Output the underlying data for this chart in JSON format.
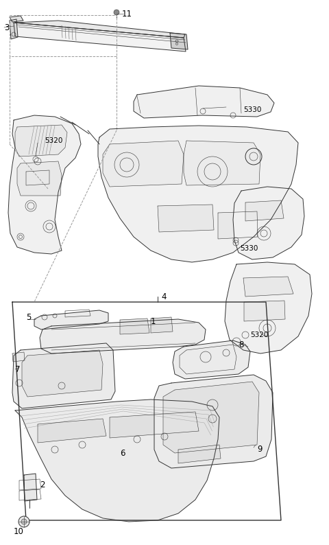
{
  "bg_color": "#ffffff",
  "line_color": "#333333",
  "dashed_color": "#999999",
  "fig_width": 4.8,
  "fig_height": 7.94,
  "dpi": 100,
  "lw": 0.7,
  "lw_thin": 0.4,
  "lw_thick": 1.0,
  "fs_label": 8.5,
  "fs_small": 7.5
}
